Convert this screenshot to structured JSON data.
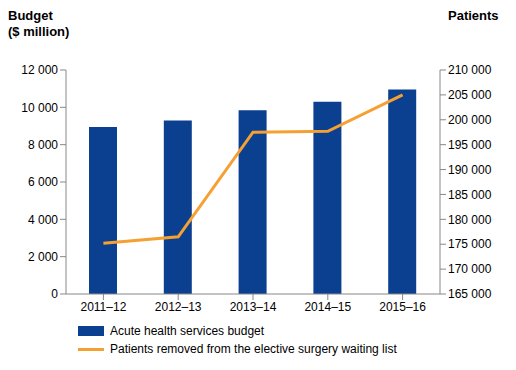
{
  "chart_data": {
    "type": "bar",
    "ylabel": "Budget\n($ million)",
    "y2label": "Patients",
    "categories": [
      "2011–12",
      "2012–13",
      "2013–14",
      "2014–15",
      "2015–16"
    ],
    "series": [
      {
        "name": "Acute health services budget",
        "color": "#0b3f8f",
        "type": "bar",
        "values": [
          8950,
          9300,
          9850,
          10300,
          10950
        ]
      },
      {
        "name": "Patients removed from the elective surgery waiting list",
        "color": "#f5a033",
        "type": "line",
        "axis": "y2",
        "values": [
          175200,
          176500,
          197500,
          197700,
          205000
        ]
      }
    ],
    "ylim": [
      0,
      12000
    ],
    "yticks": [
      0,
      {
        "value": 2000,
        "label": "2 000"
      },
      {
        "value": 4000,
        "label": "4 000"
      },
      {
        "value": 6000,
        "label": "6 000"
      },
      {
        "value": 8000,
        "label": "8 000"
      },
      {
        "value": 10000,
        "label": "10 000"
      },
      {
        "value": 12000,
        "label": "12 000"
      }
    ],
    "y2lim": [
      165000,
      210000
    ],
    "y2ticks": [
      {
        "value": 165000,
        "label": "165 000"
      },
      {
        "value": 170000,
        "label": "170 000"
      },
      {
        "value": 175000,
        "label": "175 000"
      },
      {
        "value": 180000,
        "label": "180 000"
      },
      {
        "value": 185000,
        "label": "185 000"
      },
      {
        "value": 190000,
        "label": "190 000"
      },
      {
        "value": 195000,
        "label": "195 000"
      },
      {
        "value": 200000,
        "label": "200 000"
      },
      {
        "value": 205000,
        "label": "205 000"
      },
      {
        "value": 210000,
        "label": "210 000"
      }
    ],
    "grid": false,
    "legend": "bottom"
  }
}
